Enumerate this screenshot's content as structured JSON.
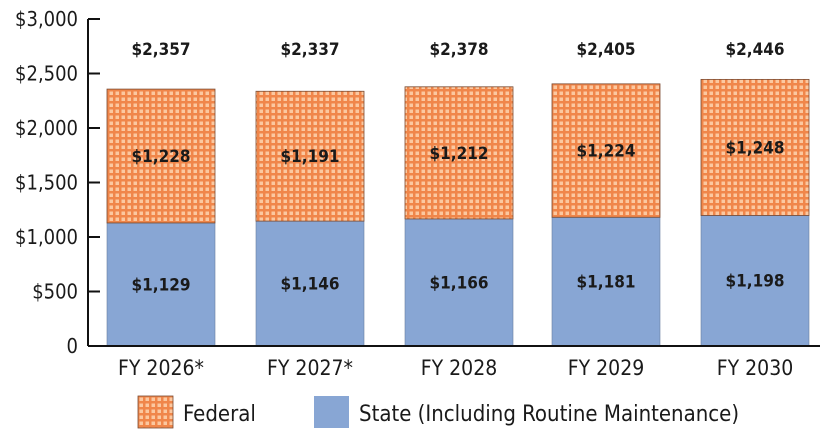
{
  "chart_data": {
    "type": "bar",
    "stacked": true,
    "categories": [
      "FY 2026*",
      "FY 2027*",
      "FY 2028",
      "FY 2029",
      "FY 2030"
    ],
    "series": [
      {
        "name": "State (Including Routine Maintenance)",
        "values": [
          1129,
          1146,
          1166,
          1181,
          1198
        ],
        "labels": [
          "$1,129",
          "$1,146",
          "$1,166",
          "$1,181",
          "$1,198"
        ],
        "color": "#88a6d4"
      },
      {
        "name": "Federal",
        "values": [
          1228,
          1191,
          1212,
          1224,
          1248
        ],
        "labels": [
          "$1,228",
          "$1,191",
          "$1,212",
          "$1,224",
          "$1,248"
        ],
        "color": "#f0864a",
        "pattern": "grid"
      }
    ],
    "totals": [
      "$2,357",
      "$2,337",
      "$2,378",
      "$2,405",
      "$2,446"
    ],
    "ylim": [
      0,
      3000
    ],
    "yticks": [
      0,
      500,
      1000,
      1500,
      2000,
      2500,
      3000
    ],
    "ytick_labels": [
      "0",
      "$500",
      "$1,000",
      "$1,500",
      "$2,000",
      "$2,500",
      "$3,000"
    ],
    "legend_order": [
      "Federal",
      "State (Including Routine Maintenance)"
    ],
    "legend_position": "bottom",
    "grid": false
  }
}
